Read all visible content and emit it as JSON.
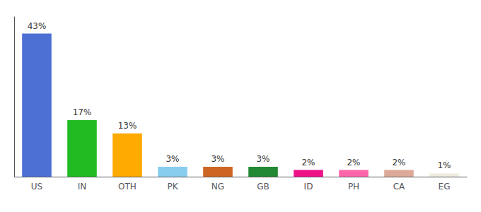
{
  "chart_data": {
    "type": "bar",
    "categories": [
      "US",
      "IN",
      "OTH",
      "PK",
      "NG",
      "GB",
      "ID",
      "PH",
      "CA",
      "EG"
    ],
    "values": [
      43,
      17,
      13,
      3,
      3,
      3,
      2,
      2,
      2,
      1
    ],
    "value_labels": [
      "43%",
      "17%",
      "13%",
      "3%",
      "3%",
      "3%",
      "2%",
      "2%",
      "2%",
      "1%"
    ],
    "colors": [
      "#4d70d4",
      "#22bb22",
      "#ffaa00",
      "#88ccee",
      "#cc6622",
      "#228833",
      "#ee1188",
      "#ff66aa",
      "#ddaa99",
      "#f0ede0"
    ],
    "ylim": [
      0,
      48
    ],
    "grid": false,
    "data_labels": true,
    "tick_labels": "x"
  }
}
